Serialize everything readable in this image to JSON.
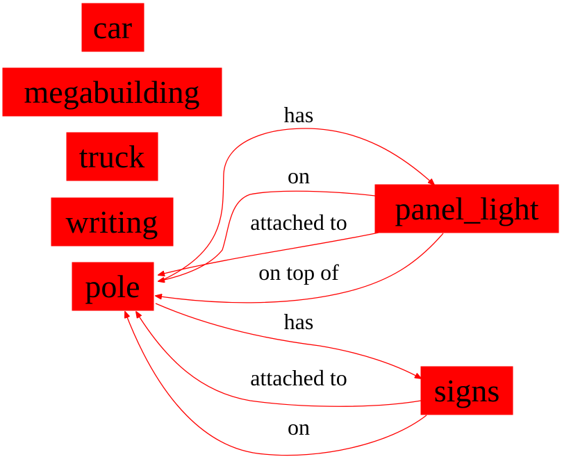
{
  "colors": {
    "node_fill": "#ff0000",
    "edge": "#ff0000",
    "text": "#000000",
    "background": "#ffffff"
  },
  "nodes": {
    "car": "car",
    "megabuilding": "megabuilding",
    "truck": "truck",
    "writing": "writing",
    "pole": "pole",
    "panel_light": "panel_light",
    "signs": "signs"
  },
  "edges": [
    {
      "from": "pole",
      "to": "panel_light",
      "label": "has"
    },
    {
      "from": "panel_light",
      "to": "pole",
      "label": "on"
    },
    {
      "from": "panel_light",
      "to": "pole",
      "label": "attached to"
    },
    {
      "from": "panel_light",
      "to": "pole",
      "label": "on top of"
    },
    {
      "from": "pole",
      "to": "signs",
      "label": "has"
    },
    {
      "from": "signs",
      "to": "pole",
      "label": "attached to"
    },
    {
      "from": "signs",
      "to": "pole",
      "label": "on"
    }
  ]
}
